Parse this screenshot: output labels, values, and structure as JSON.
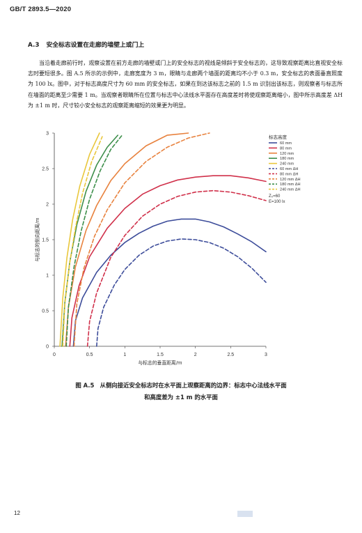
{
  "header": {
    "standard_code": "GB/T 2893.5—2020"
  },
  "section": {
    "number": "A.3",
    "title": "安全标志设置在走廊的墙壁上或门上",
    "paragraph": "当沿着走廊前行时，观察设置在前方走廊的墙壁或门上的安全标志的视线是倾斜于安全标志的，这导致观察距离比直视安全标志时要短很多。图 A.5 所示的示例中，走廊宽度为 3 m，眼睛与走廊两个墙面的距离均不小于 0.3 m，安全标志的表面垂直照度为 100 lx。图中，对于标志高度尺寸为 60 mm 的安全标志，如果在到达该标志之前的 1.5 m 识别出该标志，则观察者与标志所在墙面的距离至少需要 1 m。当观察者眼睛所在位置与标志中心法线水平面存在高度差时将使观察距离缩小，图中所示高度差 ΔH 为 ±1 m 时，尺寸较小安全标志的观察距离缩短的效果更为明显。"
  },
  "chart_data": {
    "type": "line",
    "xlabel": "与标志的垂直距离/m",
    "ylabel": "与标志的侧向距离/m",
    "xlim": [
      0,
      3
    ],
    "ylim": [
      0,
      3
    ],
    "xticks": [
      "0",
      "0.5",
      "1",
      "1.5",
      "2",
      "2.5",
      "3"
    ],
    "yticks": [
      "0",
      "0.5",
      "1",
      "1.5",
      "2",
      "2.5",
      "3"
    ],
    "grid": false,
    "legend_title": "标志高度",
    "legend_placement": "right",
    "series": [
      {
        "name": "60 mm",
        "color": "#3c4c9a",
        "dash": false,
        "x": [
          0.27,
          0.3,
          0.4,
          0.6,
          0.8,
          1.0,
          1.2,
          1.4,
          1.6,
          1.8,
          2.0,
          2.2,
          2.4,
          2.6,
          2.8,
          3.0
        ],
        "y": [
          0.0,
          0.36,
          0.68,
          1.04,
          1.28,
          1.46,
          1.59,
          1.69,
          1.76,
          1.79,
          1.79,
          1.75,
          1.68,
          1.58,
          1.47,
          1.33
        ]
      },
      {
        "name": "80 mm",
        "color": "#d0304a",
        "dash": false,
        "x": [
          0.22,
          0.25,
          0.35,
          0.5,
          0.75,
          1.0,
          1.25,
          1.5,
          1.75,
          2.0,
          2.25,
          2.5,
          2.75,
          3.0
        ],
        "y": [
          0.0,
          0.4,
          0.85,
          1.26,
          1.66,
          1.94,
          2.14,
          2.26,
          2.34,
          2.38,
          2.4,
          2.4,
          2.37,
          2.32
        ]
      },
      {
        "name": "120 mm",
        "color": "#e8823e",
        "dash": false,
        "x": [
          0.16,
          0.2,
          0.3,
          0.45,
          0.6,
          0.8,
          1.0,
          1.3,
          1.6,
          1.9
        ],
        "y": [
          0.0,
          0.55,
          1.12,
          1.63,
          1.98,
          2.33,
          2.57,
          2.82,
          2.97,
          3.0
        ]
      },
      {
        "name": "180 mm",
        "color": "#3c8e4a",
        "dash": false,
        "x": [
          0.11,
          0.15,
          0.22,
          0.32,
          0.45,
          0.6,
          0.75,
          0.9
        ],
        "y": [
          0.0,
          0.62,
          1.19,
          1.71,
          2.18,
          2.55,
          2.8,
          2.97
        ]
      },
      {
        "name": "240 mm",
        "color": "#e9c73c",
        "dash": false,
        "x": [
          0.08,
          0.12,
          0.18,
          0.26,
          0.36,
          0.5,
          0.64
        ],
        "y": [
          0.0,
          0.68,
          1.25,
          1.78,
          2.25,
          2.7,
          3.0
        ]
      },
      {
        "name": "60 mm ΔH",
        "color": "#3c4c9a",
        "dash": true,
        "x": [
          0.6,
          0.62,
          0.7,
          0.85,
          1.0,
          1.2,
          1.4,
          1.6,
          1.8,
          2.0,
          2.2,
          2.4,
          2.6,
          2.8,
          3.0
        ],
        "y": [
          0.0,
          0.25,
          0.55,
          0.86,
          1.08,
          1.28,
          1.41,
          1.48,
          1.51,
          1.5,
          1.46,
          1.38,
          1.26,
          1.1,
          0.9
        ]
      },
      {
        "name": "80 mm ΔH",
        "color": "#d0304a",
        "dash": true,
        "x": [
          0.47,
          0.5,
          0.6,
          0.8,
          1.0,
          1.25,
          1.5,
          1.75,
          2.0,
          2.25,
          2.5,
          2.75,
          3.0
        ],
        "y": [
          0.0,
          0.35,
          0.75,
          1.25,
          1.56,
          1.83,
          2.0,
          2.11,
          2.17,
          2.19,
          2.17,
          2.12,
          2.05
        ]
      },
      {
        "name": "120 mm ΔH",
        "color": "#e8823e",
        "dash": true,
        "x": [
          0.28,
          0.32,
          0.42,
          0.57,
          0.75,
          1.0,
          1.3,
          1.6,
          1.9,
          2.2
        ],
        "y": [
          0.0,
          0.6,
          1.1,
          1.55,
          1.92,
          2.3,
          2.6,
          2.8,
          2.93,
          3.0
        ]
      },
      {
        "name": "180 mm ΔH",
        "color": "#3c8e4a",
        "dash": true,
        "x": [
          0.17,
          0.2,
          0.28,
          0.38,
          0.5,
          0.65,
          0.8,
          0.96
        ],
        "y": [
          0.0,
          0.55,
          1.12,
          1.62,
          2.07,
          2.47,
          2.77,
          2.97
        ]
      },
      {
        "name": "240 mm ΔH",
        "color": "#e9c73c",
        "dash": true,
        "x": [
          0.12,
          0.15,
          0.22,
          0.3,
          0.4,
          0.53,
          0.68
        ],
        "y": [
          0.0,
          0.6,
          1.18,
          1.67,
          2.15,
          2.6,
          2.95
        ]
      }
    ],
    "annotations": [
      "Z₀=60",
      "E=100 lx"
    ]
  },
  "figure": {
    "caption_line1": "图 A.5　从侧向接近安全标志时在水平面上观察距离的边界：标志中心法线水平面",
    "caption_line2": "和高度差为 ±1 m 的水平面"
  },
  "footer": {
    "page_number": "12"
  }
}
